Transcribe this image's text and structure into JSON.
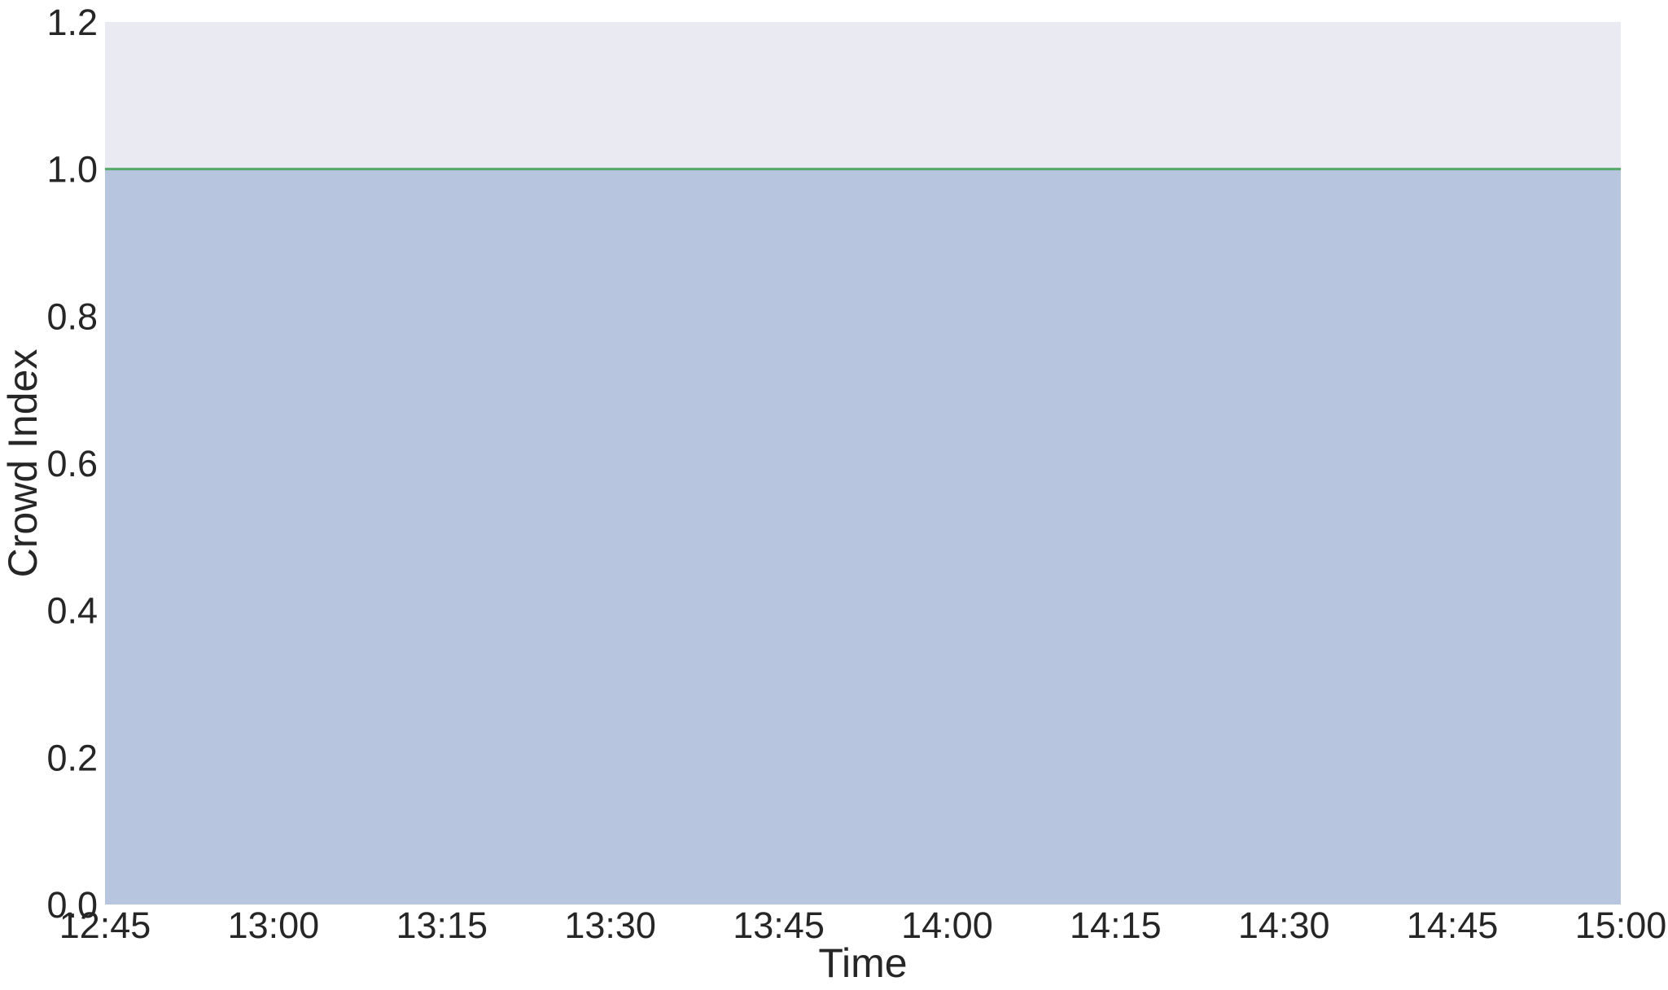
{
  "chart_data": {
    "type": "area",
    "title": "",
    "xlabel": "Time",
    "ylabel": "Crowd Index",
    "x_ticks": [
      "12:45",
      "13:00",
      "13:15",
      "13:30",
      "13:45",
      "14:00",
      "14:15",
      "14:30",
      "14:45",
      "15:00"
    ],
    "y_ticks": [
      "0.0",
      "0.2",
      "0.4",
      "0.6",
      "0.8",
      "1.0",
      "1.2"
    ],
    "ylim": [
      0,
      1.2
    ],
    "xlim": [
      "12:45",
      "15:00"
    ],
    "grid": false,
    "series": [
      {
        "x": [
          "12:45",
          "13:00",
          "13:15",
          "13:30",
          "13:45",
          "14:00",
          "14:15",
          "14:30",
          "14:45",
          "15:00"
        ],
        "values": [
          1.0,
          1.0,
          1.0,
          1.0,
          1.0,
          1.0,
          1.0,
          1.0,
          1.0,
          1.0
        ],
        "line_color": "#55a868",
        "fill_color": "#b8c5de"
      }
    ],
    "colors": {
      "plot_background": "#eaeaf2",
      "text": "#262626"
    }
  }
}
